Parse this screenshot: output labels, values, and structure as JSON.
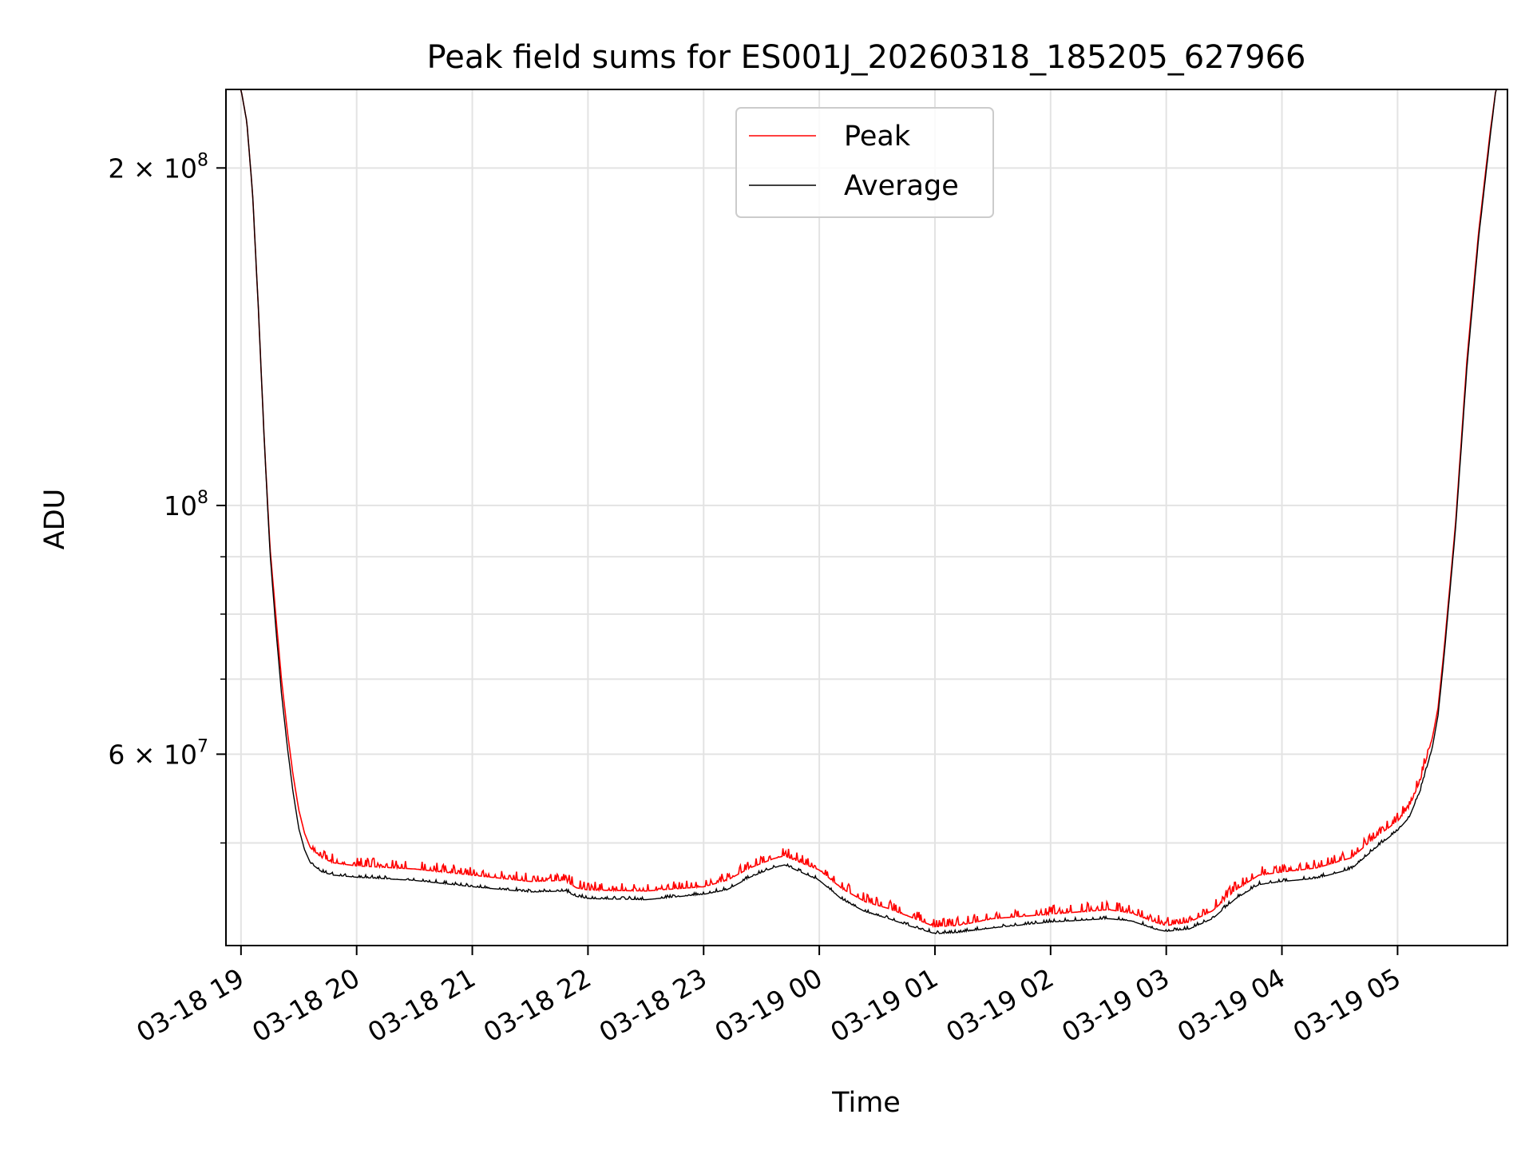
{
  "chart_data": {
    "type": "line",
    "title": "Peak field sums for ES001J_20260318_185205_627966",
    "xlabel": "Time",
    "ylabel": "ADU",
    "yscale": "log",
    "ylim": [
      40500000,
      235000000
    ],
    "xlim_hours": [
      -0.13,
      10.95
    ],
    "grid": true,
    "legend_position": "upper-center",
    "x_ticks": [
      {
        "hour": 0,
        "label": "03-18 19"
      },
      {
        "hour": 1,
        "label": "03-18 20"
      },
      {
        "hour": 2,
        "label": "03-18 21"
      },
      {
        "hour": 3,
        "label": "03-18 22"
      },
      {
        "hour": 4,
        "label": "03-18 23"
      },
      {
        "hour": 5,
        "label": "03-19 00"
      },
      {
        "hour": 6,
        "label": "03-19 01"
      },
      {
        "hour": 7,
        "label": "03-19 02"
      },
      {
        "hour": 8,
        "label": "03-19 03"
      },
      {
        "hour": 9,
        "label": "03-19 04"
      },
      {
        "hour": 10,
        "label": "03-19 05"
      }
    ],
    "y_major_ticks": [
      {
        "value": 200000000,
        "mantissa": "2",
        "exp": "8"
      },
      {
        "value": 100000000,
        "mantissa": "",
        "exp": "8"
      },
      {
        "value": 60000000,
        "mantissa": "6",
        "exp": "7"
      }
    ],
    "y_minor_ticks": [
      50000000,
      70000000,
      80000000,
      90000000
    ],
    "series": [
      {
        "name": "Peak",
        "color": "#ff0000",
        "points": [
          [
            -0.13,
            235000000
          ],
          [
            0.0,
            235000000
          ],
          [
            0.05,
            220000000
          ],
          [
            0.1,
            190000000
          ],
          [
            0.15,
            150000000
          ],
          [
            0.2,
            115000000
          ],
          [
            0.25,
            92000000
          ],
          [
            0.3,
            80000000
          ],
          [
            0.35,
            70000000
          ],
          [
            0.4,
            63000000
          ],
          [
            0.45,
            57500000
          ],
          [
            0.5,
            53500000
          ],
          [
            0.55,
            51000000
          ],
          [
            0.6,
            49500000
          ],
          [
            0.7,
            48500000
          ],
          [
            0.8,
            48000000
          ],
          [
            1.0,
            47700000
          ],
          [
            1.5,
            47400000
          ],
          [
            2.0,
            46800000
          ],
          [
            2.5,
            46200000
          ],
          [
            2.8,
            46300000
          ],
          [
            2.9,
            45600000
          ],
          [
            3.0,
            45400000
          ],
          [
            3.5,
            45300000
          ],
          [
            4.0,
            45700000
          ],
          [
            4.2,
            46300000
          ],
          [
            4.4,
            47500000
          ],
          [
            4.6,
            48400000
          ],
          [
            4.7,
            48700000
          ],
          [
            4.8,
            48200000
          ],
          [
            5.0,
            47300000
          ],
          [
            5.2,
            45500000
          ],
          [
            5.4,
            44300000
          ],
          [
            5.6,
            43700000
          ],
          [
            5.8,
            42900000
          ],
          [
            6.0,
            42100000
          ],
          [
            6.2,
            42200000
          ],
          [
            6.5,
            42800000
          ],
          [
            7.0,
            43200000
          ],
          [
            7.5,
            43600000
          ],
          [
            7.7,
            43300000
          ],
          [
            7.9,
            42500000
          ],
          [
            8.0,
            42200000
          ],
          [
            8.2,
            42500000
          ],
          [
            8.4,
            43500000
          ],
          [
            8.6,
            45400000
          ],
          [
            8.8,
            46800000
          ],
          [
            9.0,
            47100000
          ],
          [
            9.3,
            47500000
          ],
          [
            9.6,
            48500000
          ],
          [
            9.8,
            50500000
          ],
          [
            10.0,
            52300000
          ],
          [
            10.1,
            53800000
          ],
          [
            10.2,
            57000000
          ],
          [
            10.3,
            62000000
          ],
          [
            10.35,
            66000000
          ],
          [
            10.4,
            74000000
          ],
          [
            10.5,
            96000000
          ],
          [
            10.6,
            135000000
          ],
          [
            10.7,
            175000000
          ],
          [
            10.8,
            215000000
          ],
          [
            10.85,
            235000000
          ],
          [
            10.95,
            235000000
          ]
        ]
      },
      {
        "name": "Average",
        "color": "#000000",
        "points": [
          [
            -0.13,
            235000000
          ],
          [
            0.0,
            235000000
          ],
          [
            0.05,
            220000000
          ],
          [
            0.1,
            190000000
          ],
          [
            0.15,
            150000000
          ],
          [
            0.2,
            115000000
          ],
          [
            0.25,
            91000000
          ],
          [
            0.3,
            78000000
          ],
          [
            0.35,
            68000000
          ],
          [
            0.4,
            61000000
          ],
          [
            0.45,
            55500000
          ],
          [
            0.5,
            51500000
          ],
          [
            0.55,
            49300000
          ],
          [
            0.6,
            48000000
          ],
          [
            0.7,
            47100000
          ],
          [
            0.8,
            46800000
          ],
          [
            1.0,
            46600000
          ],
          [
            1.5,
            46300000
          ],
          [
            2.0,
            45700000
          ],
          [
            2.5,
            45200000
          ],
          [
            2.8,
            45300000
          ],
          [
            2.9,
            44800000
          ],
          [
            3.0,
            44600000
          ],
          [
            3.5,
            44500000
          ],
          [
            4.0,
            45000000
          ],
          [
            4.2,
            45400000
          ],
          [
            4.4,
            46600000
          ],
          [
            4.6,
            47500000
          ],
          [
            4.7,
            47800000
          ],
          [
            4.8,
            47300000
          ],
          [
            5.0,
            46300000
          ],
          [
            5.2,
            44500000
          ],
          [
            5.4,
            43400000
          ],
          [
            5.6,
            42800000
          ],
          [
            5.8,
            42100000
          ],
          [
            6.0,
            41500000
          ],
          [
            6.2,
            41600000
          ],
          [
            6.5,
            42000000
          ],
          [
            7.0,
            42500000
          ],
          [
            7.5,
            42800000
          ],
          [
            7.7,
            42600000
          ],
          [
            7.9,
            41900000
          ],
          [
            8.0,
            41700000
          ],
          [
            8.2,
            41900000
          ],
          [
            8.4,
            42800000
          ],
          [
            8.6,
            44600000
          ],
          [
            8.8,
            45900000
          ],
          [
            9.0,
            46200000
          ],
          [
            9.3,
            46500000
          ],
          [
            9.6,
            47400000
          ],
          [
            9.8,
            49400000
          ],
          [
            10.0,
            51300000
          ],
          [
            10.1,
            52700000
          ],
          [
            10.2,
            55800000
          ],
          [
            10.3,
            60800000
          ],
          [
            10.35,
            65000000
          ],
          [
            10.4,
            73000000
          ],
          [
            10.5,
            95000000
          ],
          [
            10.6,
            133000000
          ],
          [
            10.7,
            173000000
          ],
          [
            10.8,
            213000000
          ],
          [
            10.85,
            235000000
          ],
          [
            10.95,
            235000000
          ]
        ]
      }
    ]
  }
}
